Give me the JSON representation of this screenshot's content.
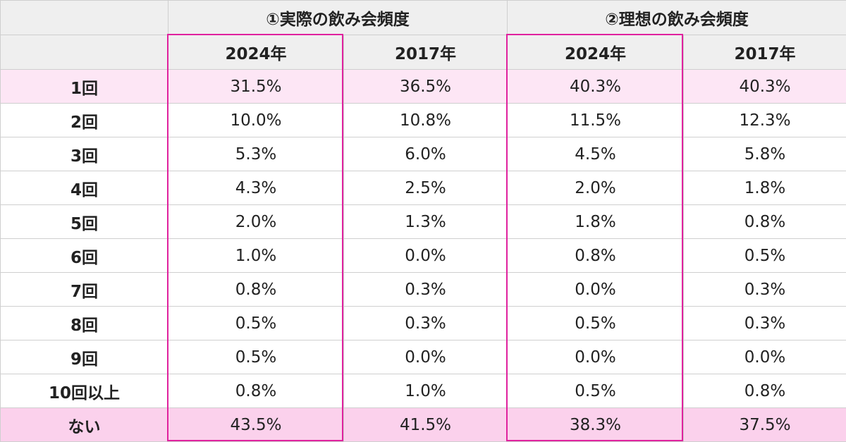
{
  "chart_data": {
    "type": "table",
    "groups": [
      "①実際の飲み会頻度",
      "②理想の飲み会頻度"
    ],
    "columns": [
      "2024年",
      "2017年",
      "2024年",
      "2017年"
    ],
    "rows": [
      {
        "label": "1回",
        "values": [
          "31.5%",
          "36.5%",
          "40.3%",
          "40.3%"
        ]
      },
      {
        "label": "2回",
        "values": [
          "10.0%",
          "10.8%",
          "11.5%",
          "12.3%"
        ]
      },
      {
        "label": "3回",
        "values": [
          "5.3%",
          "6.0%",
          "4.5%",
          "5.8%"
        ]
      },
      {
        "label": "4回",
        "values": [
          "4.3%",
          "2.5%",
          "2.0%",
          "1.8%"
        ]
      },
      {
        "label": "5回",
        "values": [
          "2.0%",
          "1.3%",
          "1.8%",
          "0.8%"
        ]
      },
      {
        "label": "6回",
        "values": [
          "1.0%",
          "0.0%",
          "0.8%",
          "0.5%"
        ]
      },
      {
        "label": "7回",
        "values": [
          "0.8%",
          "0.3%",
          "0.0%",
          "0.3%"
        ]
      },
      {
        "label": "8回",
        "values": [
          "0.5%",
          "0.3%",
          "0.5%",
          "0.3%"
        ]
      },
      {
        "label": "9回",
        "values": [
          "0.5%",
          "0.0%",
          "0.0%",
          "0.0%"
        ]
      },
      {
        "label": "10回以上",
        "values": [
          "0.8%",
          "1.0%",
          "0.5%",
          "0.8%"
        ]
      },
      {
        "label": "ない",
        "values": [
          "43.5%",
          "41.5%",
          "38.3%",
          "37.5%"
        ]
      }
    ]
  },
  "colors": {
    "header_bg": "#efefef",
    "highlight_light": "#fde6f5",
    "highlight_strong": "#fbd1ec",
    "frame": "#e0219e",
    "grid": "#cfcfcf"
  }
}
